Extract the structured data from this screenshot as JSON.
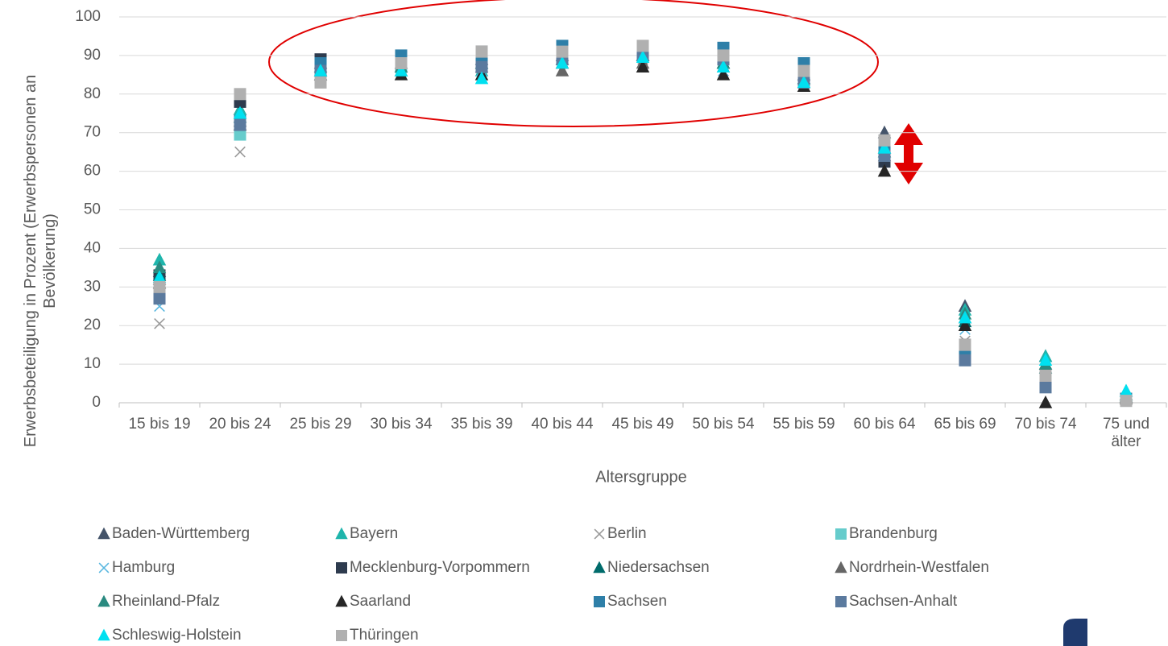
{
  "chart_data": {
    "type": "scatter",
    "x_label": "Altersgruppe",
    "y_label": "Erwerbsbeteiligung in Prozent (Erwerbspersonen an Bevölkerung)",
    "categories": [
      "15 bis 19",
      "20 bis 24",
      "25 bis 29",
      "30 bis 34",
      "35 bis 39",
      "40 bis 44",
      "45 bis 49",
      "50 bis 54",
      "55 bis 59",
      "60 bis 64",
      "65 bis 69",
      "70 bis 74",
      "75 und älter"
    ],
    "ylim": [
      0,
      100
    ],
    "yticks": [
      0,
      10,
      20,
      30,
      40,
      50,
      60,
      70,
      80,
      90,
      100
    ],
    "grid": true,
    "series": [
      {
        "name": "Baden-Württemberg",
        "marker": "triangle",
        "color": "#44546a",
        "values": [
          34,
          76,
          88,
          88,
          89,
          90,
          90,
          88,
          85,
          70,
          25,
          12,
          2
        ]
      },
      {
        "name": "Bayern",
        "marker": "triangle",
        "color": "#1fb5ac",
        "values": [
          37,
          76,
          86,
          86,
          86,
          89,
          90,
          88,
          84,
          66,
          24,
          12,
          3
        ]
      },
      {
        "name": "Berlin",
        "marker": "x",
        "color": "#9a9a9a",
        "values": [
          20.5,
          65,
          83,
          86,
          87,
          88,
          89,
          87,
          83,
          65,
          16,
          6,
          1
        ]
      },
      {
        "name": "Brandenburg",
        "marker": "square",
        "color": "#66cccc",
        "values": [
          29,
          69.5,
          85,
          87,
          88,
          90,
          91,
          89,
          84,
          66,
          14,
          6,
          1
        ]
      },
      {
        "name": "Hamburg",
        "marker": "x",
        "color": "#5bb8e0",
        "values": [
          25,
          72,
          83,
          86,
          86,
          88,
          88,
          86,
          82,
          65,
          19,
          8,
          1
        ]
      },
      {
        "name": "Mecklenburg-Vorpommern",
        "marker": "square",
        "color": "#2e3b4e",
        "values": [
          33,
          78,
          89,
          89,
          91,
          90,
          91,
          90,
          84,
          62.5,
          15,
          5,
          1
        ]
      },
      {
        "name": "Niedersachsen",
        "marker": "triangle",
        "color": "#006b6b",
        "values": [
          33,
          74,
          87,
          87,
          88,
          89,
          90,
          88,
          84,
          65,
          21,
          9,
          1.5
        ]
      },
      {
        "name": "Nordrhein-Westfalen",
        "marker": "triangle",
        "color": "#666666",
        "values": [
          32,
          73,
          86,
          86,
          87,
          86,
          88,
          87,
          83,
          64,
          22,
          10,
          1.5
        ]
      },
      {
        "name": "Rheinland-Pfalz",
        "marker": "triangle",
        "color": "#2a8a80",
        "values": [
          35,
          75,
          87,
          87,
          88,
          89,
          90,
          88,
          84,
          66,
          23,
          10,
          2
        ]
      },
      {
        "name": "Saarland",
        "marker": "triangle",
        "color": "#262626",
        "values": [
          31,
          72,
          85,
          85,
          85,
          88,
          87,
          85,
          82,
          60,
          20,
          0,
          1
        ]
      },
      {
        "name": "Sachsen",
        "marker": "square",
        "color": "#2e7fa8",
        "values": [
          28,
          73,
          88,
          90,
          90,
          92.5,
          92,
          92,
          88,
          67,
          13,
          5,
          1
        ]
      },
      {
        "name": "Sachsen-Anhalt",
        "marker": "square",
        "color": "#5b7a9e",
        "values": [
          27,
          72,
          86,
          88,
          87,
          89,
          90,
          89,
          83,
          64,
          11,
          4,
          0.5
        ]
      },
      {
        "name": "Schleswig-Holstein",
        "marker": "triangle",
        "color": "#00e0f0",
        "values": [
          32.5,
          75,
          86,
          86,
          84,
          88,
          89.5,
          87,
          83,
          66,
          22,
          11,
          3
        ]
      },
      {
        "name": "Thüringen",
        "marker": "square",
        "color": "#b0b0b0",
        "values": [
          30,
          80,
          83,
          88,
          91,
          91,
          92.5,
          90,
          86,
          68,
          15,
          7,
          0.5
        ]
      }
    ]
  }
}
